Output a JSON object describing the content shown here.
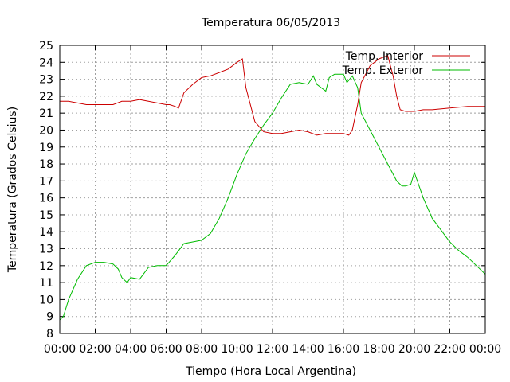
{
  "chart_data": {
    "type": "line",
    "title": "Temperatura 06/05/2013",
    "xlabel": "Tiempo (Hora Local Argentina)",
    "ylabel": "Temperatura (Grados Celsius)",
    "xlim": [
      0,
      24
    ],
    "ylim": [
      8,
      25
    ],
    "x_ticks": [
      0,
      2,
      4,
      6,
      8,
      10,
      12,
      14,
      16,
      18,
      20,
      22,
      24
    ],
    "x_tick_labels": [
      "00:00",
      "02:00",
      "04:00",
      "06:00",
      "08:00",
      "10:00",
      "12:00",
      "14:00",
      "16:00",
      "18:00",
      "20:00",
      "22:00",
      "00:00"
    ],
    "y_ticks": [
      8,
      9,
      10,
      11,
      12,
      13,
      14,
      15,
      16,
      17,
      18,
      19,
      20,
      21,
      22,
      23,
      24,
      25
    ],
    "grid": true,
    "legend_position": "top-right",
    "series": [
      {
        "name": "Temp. Interior",
        "color": "#cc0000",
        "x": [
          0,
          0.5,
          1,
          1.5,
          2,
          2.5,
          3,
          3.5,
          4,
          4.5,
          5,
          5.5,
          6,
          6.2,
          6.5,
          6.7,
          7,
          7.5,
          8,
          8.5,
          9,
          9.5,
          10,
          10.3,
          10.5,
          11,
          11.5,
          12,
          12.5,
          13,
          13.5,
          14,
          14.5,
          15,
          15.5,
          16,
          16.3,
          16.5,
          16.8,
          17,
          17.5,
          18,
          18.5,
          18.8,
          19,
          19.2,
          19.5,
          20,
          20.5,
          21,
          22,
          23,
          24
        ],
        "y": [
          21.7,
          21.7,
          21.6,
          21.5,
          21.5,
          21.5,
          21.5,
          21.7,
          21.7,
          21.8,
          21.7,
          21.6,
          21.5,
          21.5,
          21.4,
          21.3,
          22.2,
          22.7,
          23.1,
          23.2,
          23.4,
          23.6,
          24.0,
          24.2,
          22.5,
          20.5,
          19.9,
          19.8,
          19.8,
          19.9,
          20.0,
          19.9,
          19.7,
          19.8,
          19.8,
          19.8,
          19.7,
          20.0,
          21.5,
          22.8,
          23.8,
          24.2,
          24.4,
          23.2,
          22.0,
          21.2,
          21.1,
          21.1,
          21.2,
          21.2,
          21.3,
          21.4,
          21.4
        ]
      },
      {
        "name": "Temp. Exterior",
        "color": "#00bb00",
        "x": [
          0,
          0.2,
          0.5,
          1,
          1.5,
          2,
          2.5,
          3,
          3.3,
          3.5,
          3.8,
          4,
          4.5,
          5,
          5.5,
          6,
          6.5,
          7,
          7.5,
          8,
          8.5,
          9,
          9.5,
          10,
          10.5,
          11,
          11.5,
          12,
          12.5,
          13,
          13.5,
          14,
          14.3,
          14.5,
          15,
          15.2,
          15.5,
          16,
          16.2,
          16.5,
          16.8,
          17,
          17.5,
          18,
          18.5,
          19,
          19.3,
          19.5,
          19.8,
          20,
          20.5,
          21,
          21.5,
          22,
          22.5,
          23,
          23.5,
          24
        ],
        "y": [
          8.8,
          9.0,
          10.0,
          11.2,
          12.0,
          12.2,
          12.2,
          12.1,
          11.8,
          11.3,
          11.0,
          11.3,
          11.2,
          11.9,
          12.0,
          12.0,
          12.6,
          13.3,
          13.4,
          13.5,
          13.9,
          14.8,
          16.0,
          17.4,
          18.6,
          19.5,
          20.3,
          21.0,
          21.9,
          22.7,
          22.8,
          22.7,
          23.2,
          22.7,
          22.3,
          23.1,
          23.3,
          23.3,
          22.8,
          23.2,
          22.5,
          21.0,
          20.0,
          19.0,
          18.0,
          17.0,
          16.7,
          16.7,
          16.8,
          17.5,
          16.0,
          14.8,
          14.1,
          13.4,
          12.9,
          12.5,
          12.0,
          11.5
        ]
      }
    ]
  }
}
